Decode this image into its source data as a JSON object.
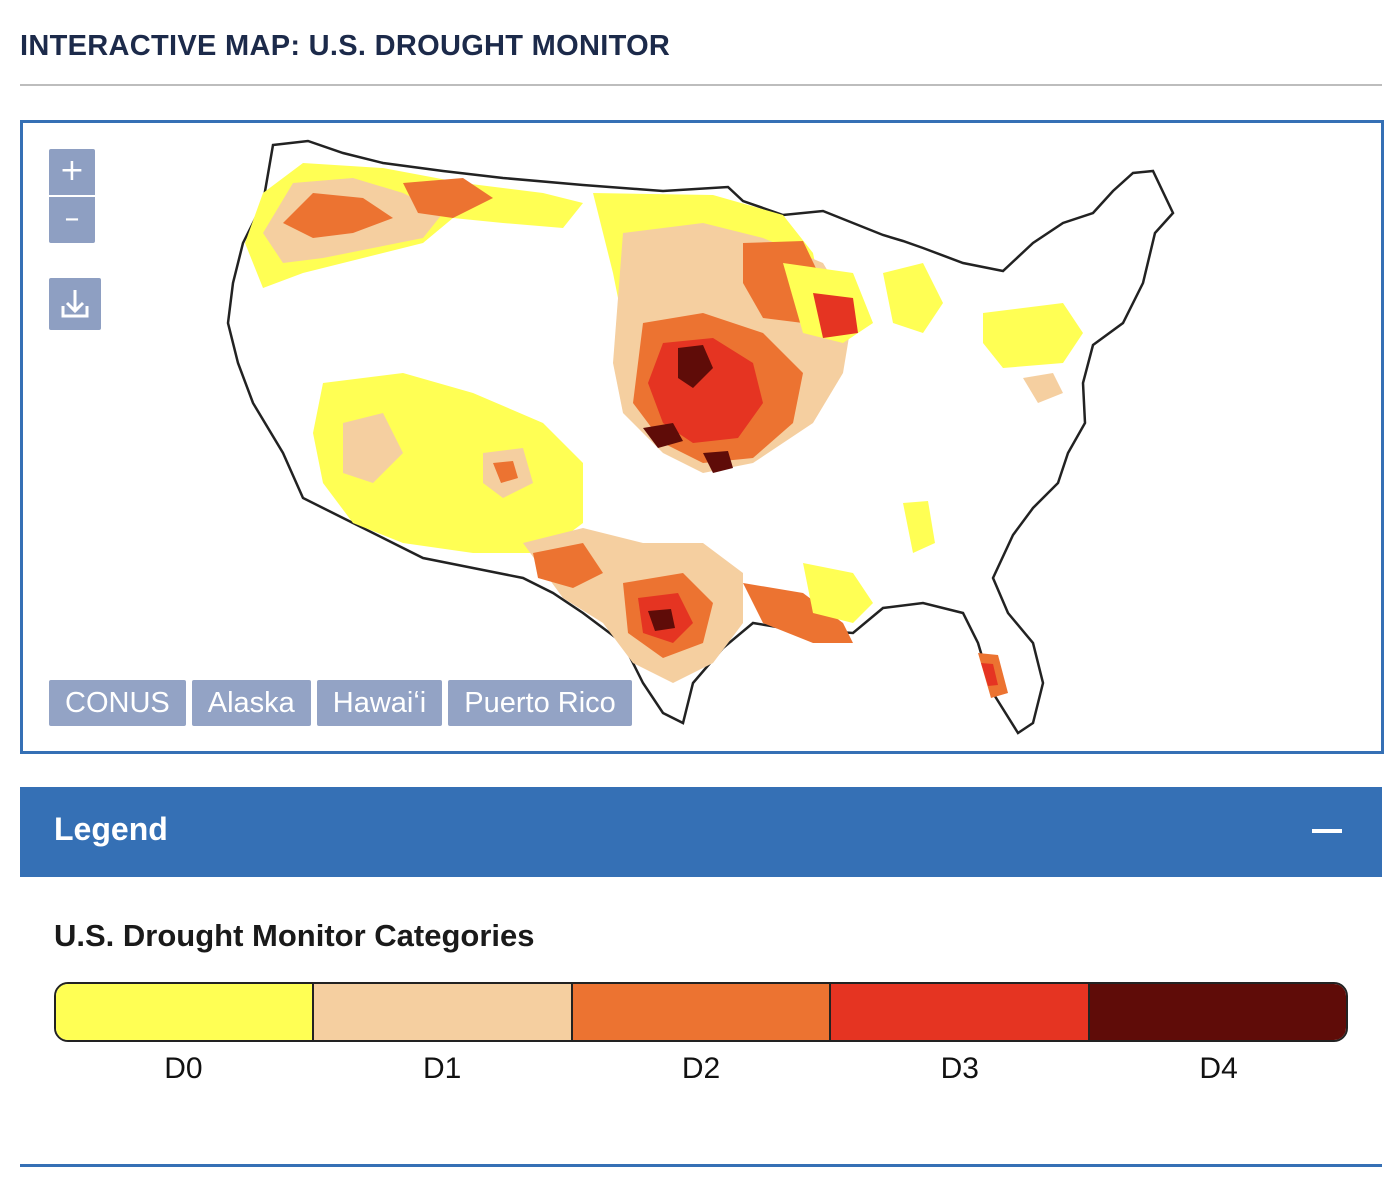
{
  "page": {
    "title": "INTERACTIVE MAP: U.S. DROUGHT MONITOR"
  },
  "map": {
    "zoom_in_label": "+",
    "zoom_out_label": "–",
    "download_icon": "download-icon",
    "region_tabs": [
      {
        "label": "CONUS"
      },
      {
        "label": "Alaska"
      },
      {
        "label": "Hawaiʻi"
      },
      {
        "label": "Puerto Rico"
      }
    ]
  },
  "legend": {
    "header": "Legend",
    "collapse_icon": "minus-icon",
    "categories_title": "U.S. Drought Monitor Categories",
    "categories": [
      {
        "label": "D0",
        "color": "#ffff54"
      },
      {
        "label": "D1",
        "color": "#f5cfa0"
      },
      {
        "label": "D2",
        "color": "#ec7331"
      },
      {
        "label": "D3",
        "color": "#e53422"
      },
      {
        "label": "D4",
        "color": "#5f0c08"
      }
    ]
  },
  "colors": {
    "accent": "#3570b5",
    "button": "#8e9fc2",
    "title": "#1c2a4a"
  }
}
